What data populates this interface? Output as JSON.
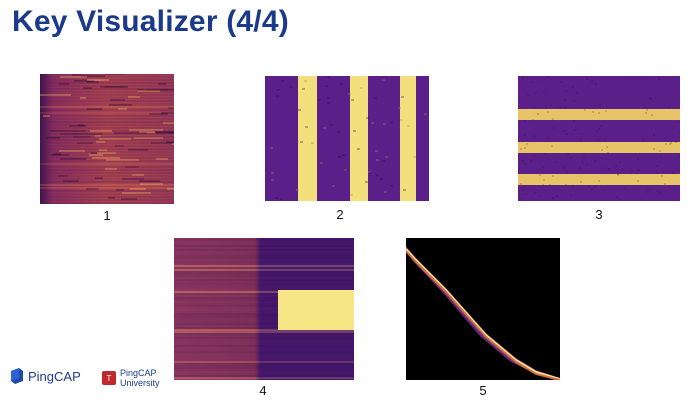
{
  "slide": {
    "title": "Key Visualizer (4/4)"
  },
  "panels": [
    {
      "caption": "1",
      "pattern": "uniform-heatmap"
    },
    {
      "caption": "2",
      "pattern": "vertical-stripes"
    },
    {
      "caption": "3",
      "pattern": "horizontal-stripes"
    },
    {
      "caption": "4",
      "pattern": "heatmap-with-hot-block"
    },
    {
      "caption": "5",
      "pattern": "diagonal-sequential-write"
    }
  ],
  "logos": {
    "pingcap": "PingCAP",
    "university_line1": "PingCAP",
    "university_line2": "University"
  },
  "colors": {
    "title": "#1b3b8a",
    "heat_dark": "#3a0f5a",
    "heat_purple": "#5a1f88",
    "heat_orange": "#d06a48",
    "heat_yellow": "#f7e685",
    "background_black": "#000000"
  }
}
